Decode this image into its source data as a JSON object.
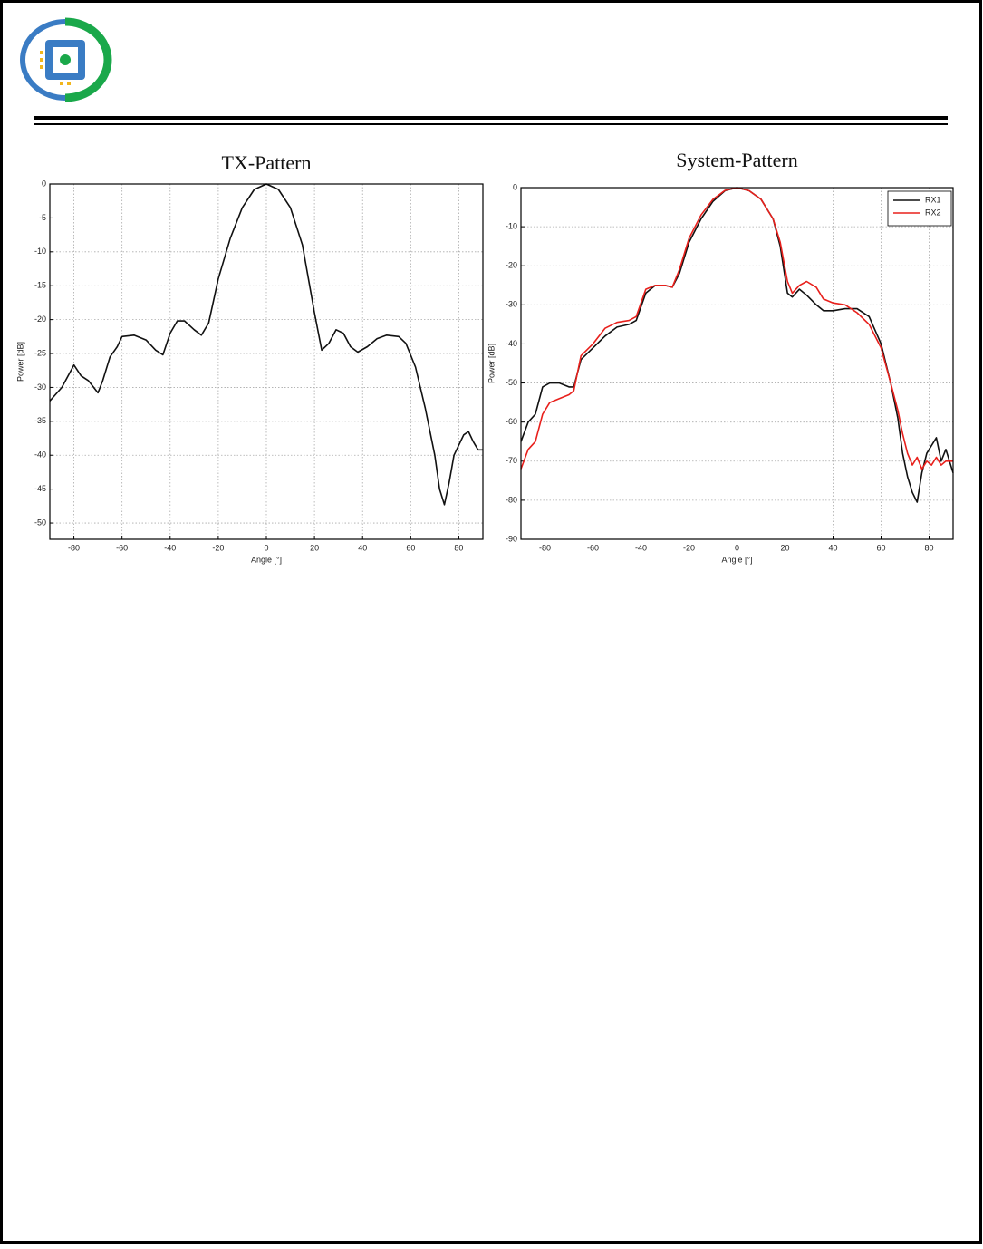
{
  "chart_data": [
    {
      "type": "line",
      "title": "TX-Pattern",
      "xlabel": "Angle [°]",
      "ylabel": "Power [dB]",
      "x": [
        -90,
        -85,
        -80,
        -77,
        -74,
        -70,
        -68,
        -65,
        -62,
        -60,
        -55,
        -50,
        -46,
        -43,
        -40,
        -37,
        -34,
        -30,
        -27,
        -24,
        -20,
        -15,
        -10,
        -5,
        0,
        5,
        10,
        15,
        20,
        23,
        26,
        29,
        32,
        35,
        38,
        42,
        46,
        50,
        55,
        58,
        62,
        66,
        70,
        72,
        74,
        76,
        78,
        82,
        84,
        86,
        88,
        90
      ],
      "series": [
        {
          "name": "TX",
          "color": "#111111",
          "values": [
            -32,
            -30,
            -26.7,
            -28.3,
            -29,
            -30.8,
            -29,
            -25.5,
            -24,
            -22.5,
            -22.3,
            -23,
            -24.5,
            -25.2,
            -22,
            -20.2,
            -20.2,
            -21.5,
            -22.3,
            -20.5,
            -14,
            -8,
            -3.5,
            -0.8,
            0,
            -0.8,
            -3.5,
            -9,
            -19,
            -24.5,
            -23.5,
            -21.5,
            -22,
            -24,
            -24.8,
            -24,
            -22.8,
            -22.3,
            -22.5,
            -23.5,
            -27,
            -33,
            -40,
            -45,
            -47.3,
            -44,
            -40,
            -37,
            -36.5,
            -38,
            -39.2,
            -39.2
          ]
        }
      ],
      "xlim": [
        -90,
        90
      ],
      "xticks": [
        -80,
        -60,
        -40,
        -20,
        0,
        20,
        40,
        60,
        80
      ],
      "ylim": [
        -52.4,
        0
      ],
      "yticks": [
        0,
        -5,
        -10,
        -15,
        -20,
        -25,
        -30,
        -35,
        -40,
        -45,
        -50
      ],
      "grid": true
    },
    {
      "type": "line",
      "title": "System-Pattern",
      "xlabel": "Angle [°]",
      "ylabel": "Power [dB]",
      "x": [
        -90,
        -87,
        -84,
        -81,
        -78,
        -74,
        -70,
        -68,
        -65,
        -60,
        -55,
        -50,
        -45,
        -42,
        -38,
        -34,
        -30,
        -27,
        -24,
        -20,
        -15,
        -10,
        -5,
        0,
        5,
        10,
        15,
        18,
        21,
        23,
        26,
        29,
        33,
        36,
        40,
        45,
        50,
        55,
        60,
        64,
        67,
        69,
        71,
        73,
        75,
        77,
        79,
        81,
        83,
        85,
        87,
        90
      ],
      "series": [
        {
          "name": "RX1",
          "color": "#111111",
          "values": [
            -65,
            -60,
            -58,
            -51,
            -50,
            -50,
            -51,
            -51,
            -44,
            -41,
            -38,
            -35.7,
            -35,
            -34,
            -27,
            -25,
            -25,
            -25.5,
            -22,
            -14,
            -8,
            -3.5,
            -0.8,
            0,
            -0.8,
            -3,
            -8,
            -15,
            -27,
            -28,
            -26,
            -27.5,
            -30,
            -31.5,
            -31.5,
            -31,
            -31,
            -33,
            -40,
            -50,
            -59,
            -68,
            -74,
            -78,
            -80.5,
            -73,
            -68,
            -66,
            -64,
            -70,
            -67,
            -73
          ]
        },
        {
          "name": "RX2",
          "color": "#e8201c",
          "values": [
            -72,
            -67,
            -65,
            -58,
            -55,
            -54,
            -53,
            -52,
            -43,
            -40,
            -36,
            -34.5,
            -34,
            -33,
            -26,
            -25,
            -25,
            -25.5,
            -21,
            -13,
            -7,
            -3,
            -0.7,
            0,
            -0.8,
            -3,
            -8,
            -14,
            -24,
            -27,
            -25,
            -24,
            -25.5,
            -28.5,
            -29.5,
            -30,
            -32,
            -35,
            -41,
            -50,
            -57,
            -63,
            -68,
            -71,
            -69,
            -72,
            -70,
            -71,
            -69,
            -71,
            -70,
            -70
          ]
        }
      ],
      "xlim": [
        -90,
        90
      ],
      "xticks": [
        -80,
        -60,
        -40,
        -20,
        0,
        20,
        40,
        60,
        80
      ],
      "ylim": [
        -90,
        0
      ],
      "yticks": [
        0,
        -10,
        -20,
        -30,
        -40,
        -50,
        -60,
        -70,
        -80,
        -90
      ],
      "grid": true,
      "legend": "upper right"
    }
  ]
}
